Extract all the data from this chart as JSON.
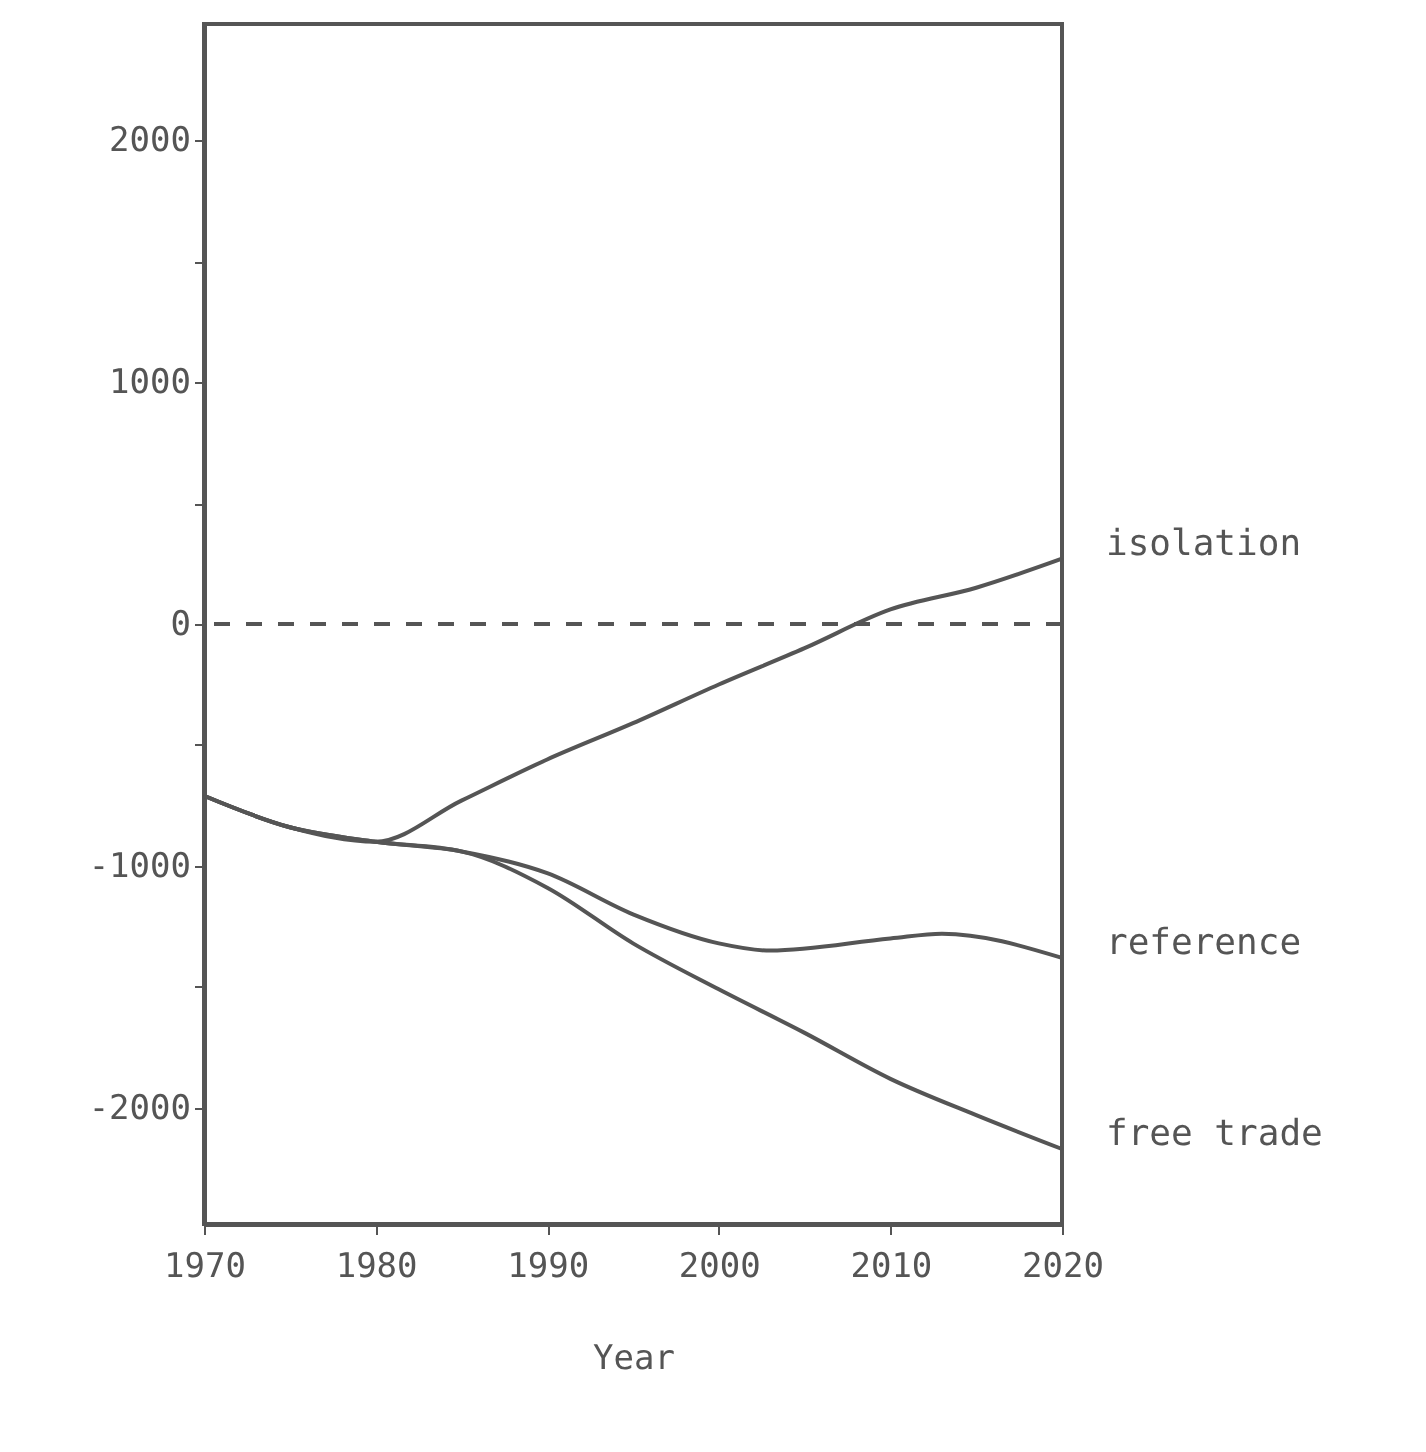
{
  "chart_data": {
    "type": "line",
    "xlabel": "Year",
    "xlim": [
      1970,
      2020
    ],
    "xticks": [
      1970,
      1980,
      1990,
      2000,
      2010,
      2020
    ],
    "ylim": [
      -2480,
      2480
    ],
    "yticks": [
      -2000,
      {
        "value": -1500,
        "label": null
      },
      -1000,
      {
        "value": -500,
        "label": null
      },
      0,
      {
        "value": 500,
        "label": null
      },
      1000,
      {
        "value": 1500,
        "label": null
      },
      2000
    ],
    "grid": false,
    "line_style": "solid",
    "marker": "none",
    "ref_lines": [
      {
        "axis": "y",
        "value": 0,
        "line_style": "dashed",
        "color": "#555555"
      }
    ],
    "series": [
      {
        "name": "isolation",
        "color": "#555555",
        "x": [
          1970,
          1975,
          1980,
          1985,
          1990,
          1995,
          2000,
          2005,
          2010,
          2015,
          2020
        ],
        "values": [
          -710,
          -840,
          -900,
          -730,
          -560,
          -410,
          -250,
          -100,
          60,
          150,
          270
        ]
      },
      {
        "name": "reference",
        "color": "#555555",
        "x": [
          1970,
          1975,
          1980,
          1985,
          1990,
          1995,
          2000,
          2003,
          2010,
          2013,
          2020
        ],
        "values": [
          -710,
          -840,
          -900,
          -940,
          -1030,
          -1200,
          -1320,
          -1350,
          -1300,
          -1280,
          -1380
        ]
      },
      {
        "name": "free trade",
        "color": "#555555",
        "x": [
          1970,
          1975,
          1980,
          1985,
          1990,
          1995,
          2000,
          2005,
          2010,
          2015,
          2020
        ],
        "values": [
          -710,
          -840,
          -900,
          -940,
          -1090,
          -1320,
          -1510,
          -1690,
          -1880,
          -2030,
          -2170
        ]
      }
    ]
  }
}
